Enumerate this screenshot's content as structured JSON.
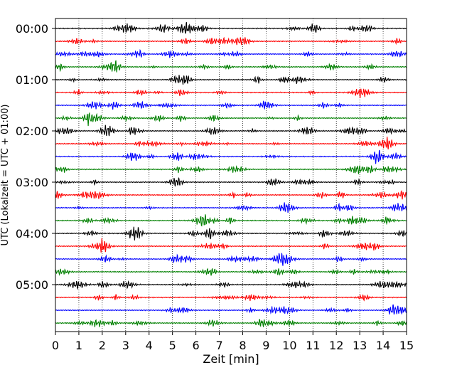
{
  "chart_data": {
    "type": "line",
    "title": "",
    "xlabel": "Zeit  [min]",
    "ylabel": "UTC (Lokalzeit = UTC + 01:00)",
    "xlim": [
      0,
      15
    ],
    "x_ticks": [
      "0",
      "1",
      "2",
      "3",
      "4",
      "5",
      "6",
      "7",
      "8",
      "9",
      "10",
      "11",
      "12",
      "13",
      "14",
      "15"
    ],
    "y_ticks": [
      "00:00",
      "01:00",
      "02:00",
      "03:00",
      "04:00",
      "05:00"
    ],
    "traces_per_hour": 4,
    "trace_count": 24,
    "trace_minutes": 15,
    "trace_colors": [
      "#000000",
      "#ff0000",
      "#0000ff",
      "#008000"
    ],
    "grid": {
      "vertical": true,
      "style": "dotted"
    },
    "legend": "none"
  }
}
